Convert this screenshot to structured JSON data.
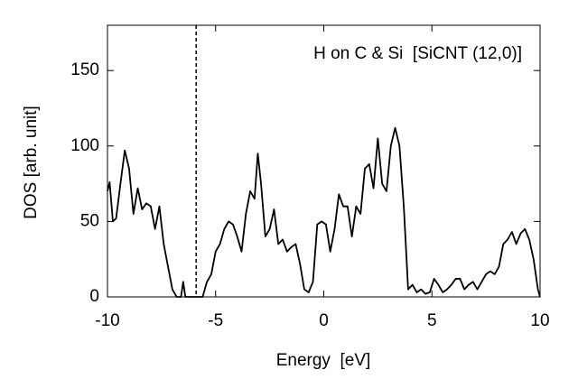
{
  "chart_data": {
    "type": "line",
    "xlabel": "Energy  [eV]",
    "ylabel": "DOS [arb. unit]",
    "annotation": "H on C & Si  [SiCNT (12,0)]",
    "vline": -5.9,
    "xlim": [
      -10,
      10
    ],
    "ylim": [
      0,
      180
    ],
    "xticks": [
      -10,
      -5,
      0,
      5,
      10
    ],
    "yticks": [
      0,
      50,
      100,
      150
    ],
    "grid": false,
    "x": [
      -10,
      -9.9,
      -9.75,
      -9.6,
      -9.4,
      -9.2,
      -9.0,
      -8.8,
      -8.6,
      -8.4,
      -8.2,
      -8.0,
      -7.8,
      -7.6,
      -7.4,
      -7.2,
      -7.0,
      -6.8,
      -6.6,
      -6.5,
      -6.4,
      -6.0,
      -5.6,
      -5.4,
      -5.2,
      -5.0,
      -4.8,
      -4.6,
      -4.4,
      -4.2,
      -4.0,
      -3.8,
      -3.6,
      -3.4,
      -3.2,
      -3.05,
      -2.9,
      -2.7,
      -2.5,
      -2.3,
      -2.1,
      -1.9,
      -1.7,
      -1.5,
      -1.3,
      -1.1,
      -0.9,
      -0.7,
      -0.5,
      -0.3,
      -0.1,
      0.1,
      0.3,
      0.5,
      0.7,
      0.9,
      1.1,
      1.3,
      1.5,
      1.7,
      1.9,
      2.1,
      2.3,
      2.5,
      2.7,
      2.9,
      3.1,
      3.3,
      3.5,
      3.7,
      3.9,
      4.1,
      4.3,
      4.5,
      4.7,
      4.9,
      5.1,
      5.3,
      5.5,
      5.7,
      5.9,
      6.1,
      6.3,
      6.5,
      6.7,
      6.9,
      7.1,
      7.3,
      7.5,
      7.7,
      7.9,
      8.1,
      8.3,
      8.5,
      8.7,
      8.9,
      9.1,
      9.3,
      9.5,
      9.7,
      9.9,
      10
    ],
    "series": [
      {
        "color": "#000000",
        "values": [
          70,
          76,
          50,
          52,
          75,
          97,
          85,
          55,
          72,
          58,
          62,
          60,
          45,
          60,
          35,
          20,
          5,
          0,
          0,
          10,
          0,
          0,
          0,
          10,
          15,
          30,
          35,
          45,
          50,
          48,
          40,
          30,
          55,
          70,
          65,
          95,
          75,
          40,
          45,
          58,
          35,
          38,
          30,
          33,
          35,
          22,
          5,
          3,
          10,
          48,
          50,
          48,
          30,
          45,
          68,
          60,
          60,
          40,
          60,
          55,
          85,
          88,
          72,
          105,
          75,
          70,
          100,
          112,
          100,
          60,
          5,
          8,
          3,
          5,
          2,
          3,
          12,
          8,
          3,
          5,
          8,
          12,
          12,
          5,
          8,
          10,
          5,
          10,
          15,
          17,
          15,
          20,
          35,
          38,
          43,
          35,
          42,
          45,
          38,
          25,
          5,
          0
        ]
      }
    ]
  }
}
